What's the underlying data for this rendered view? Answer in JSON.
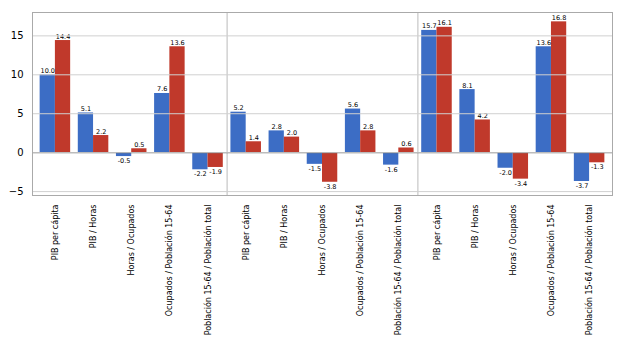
{
  "chart_data": {
    "type": "bar",
    "categories": [
      "PIB per cápita",
      "PIB / Horas",
      "Horas / Ocupados",
      "Ocupados / Población 15-64",
      "Población 15-64 / Población total",
      "PIB per cápita",
      "PIB / Horas",
      "Horas / Ocupados",
      "Ocupados / Población 15-64",
      "Población 15-64 / Población total",
      "PIB per cápita",
      "PIB / Horas",
      "Horas / Ocupados",
      "Ocupados / Población 15-64",
      "Población 15-64 / Población total"
    ],
    "series": [
      {
        "color": "#3C6DC5",
        "values": [
          10.0,
          5.1,
          -0.5,
          7.6,
          -2.2,
          5.2,
          2.8,
          -1.5,
          5.6,
          -1.6,
          15.7,
          8.1,
          -2.0,
          13.6,
          -3.7
        ],
        "value_labels": [
          "10.0",
          "5.1",
          "-0.5",
          "7.6",
          "-2.2",
          "5.2",
          "2.8",
          "-1.5",
          "5.6",
          "-1.6",
          "15.7",
          "8.1",
          "-2.0",
          "13.6",
          "-3.7"
        ]
      },
      {
        "color": "#C0392B",
        "values": [
          14.4,
          2.2,
          0.5,
          13.6,
          -1.9,
          1.4,
          2.0,
          -3.8,
          2.8,
          0.6,
          16.1,
          4.2,
          -3.4,
          16.8,
          -1.3
        ],
        "value_labels": [
          "14.4",
          "2.2",
          "0.5",
          "13.6",
          "-1.9",
          "1.4",
          "2.0",
          "-3.8",
          "2.8",
          "0.6",
          "16.1",
          "4.2",
          "-3.4",
          "16.8",
          "-1.3"
        ]
      }
    ],
    "ylim": [
      -5.5,
      18
    ],
    "yticks": [
      -5,
      0,
      5,
      10,
      15
    ],
    "grid": true,
    "data_labels": true
  }
}
